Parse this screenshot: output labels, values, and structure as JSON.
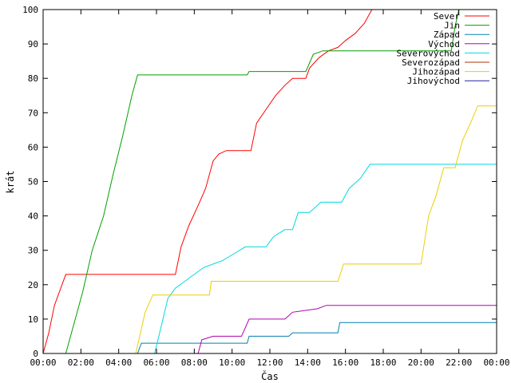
{
  "chart_data": {
    "type": "line",
    "xlabel": "Čas",
    "ylabel": "krát",
    "xlim": [
      0,
      24
    ],
    "ylim": [
      0,
      100
    ],
    "grid": false,
    "legend_position": "top-right",
    "x_tick_labels": [
      "00:00",
      "02:00",
      "04:00",
      "06:00",
      "08:00",
      "10:00",
      "12:00",
      "14:00",
      "16:00",
      "18:00",
      "20:00",
      "22:00",
      "00:00"
    ],
    "x_tick_values": [
      0,
      2,
      4,
      6,
      8,
      10,
      12,
      14,
      16,
      18,
      20,
      22,
      24
    ],
    "y_tick_values": [
      0,
      10,
      20,
      30,
      40,
      50,
      60,
      70,
      80,
      90,
      100
    ],
    "series": [
      {
        "name": "Sever",
        "color": "#ff0000",
        "points": [
          [
            0,
            0
          ],
          [
            0.3,
            6
          ],
          [
            0.6,
            14
          ],
          [
            1.0,
            20
          ],
          [
            1.2,
            23
          ],
          [
            7.0,
            23
          ],
          [
            7.3,
            31
          ],
          [
            7.7,
            37
          ],
          [
            8.2,
            43
          ],
          [
            8.6,
            48
          ],
          [
            9.0,
            56
          ],
          [
            9.3,
            58
          ],
          [
            9.7,
            59
          ],
          [
            11.0,
            59
          ],
          [
            11.3,
            67
          ],
          [
            11.8,
            71
          ],
          [
            12.3,
            75
          ],
          [
            12.8,
            78
          ],
          [
            13.2,
            80
          ],
          [
            13.9,
            80
          ],
          [
            14.1,
            83
          ],
          [
            14.6,
            86
          ],
          [
            15.1,
            88
          ],
          [
            15.6,
            89
          ],
          [
            16.0,
            91
          ],
          [
            16.5,
            93
          ],
          [
            17.0,
            96
          ],
          [
            17.4,
            100
          ]
        ]
      },
      {
        "name": "Jin",
        "color": "#00a000",
        "points": [
          [
            0,
            0
          ],
          [
            1.2,
            0
          ],
          [
            1.6,
            8
          ],
          [
            2.1,
            18
          ],
          [
            2.6,
            30
          ],
          [
            3.2,
            40
          ],
          [
            3.7,
            52
          ],
          [
            4.2,
            63
          ],
          [
            4.7,
            75
          ],
          [
            5.0,
            81
          ],
          [
            10.8,
            81
          ],
          [
            10.9,
            82
          ],
          [
            13.9,
            82
          ],
          [
            14.3,
            87
          ],
          [
            14.8,
            88
          ],
          [
            21.6,
            88
          ],
          [
            21.8,
            95
          ],
          [
            22.0,
            100
          ]
        ]
      },
      {
        "name": "Západ",
        "color": "#0080b0",
        "points": [
          [
            0,
            0
          ],
          [
            5.0,
            0
          ],
          [
            5.2,
            3
          ],
          [
            10.8,
            3
          ],
          [
            10.9,
            5
          ],
          [
            13.0,
            5
          ],
          [
            13.2,
            6
          ],
          [
            15.6,
            6
          ],
          [
            15.7,
            9
          ],
          [
            24,
            9
          ]
        ]
      },
      {
        "name": "Východ",
        "color": "#b000b0",
        "points": [
          [
            0,
            0
          ],
          [
            8.2,
            0
          ],
          [
            8.4,
            4
          ],
          [
            9.0,
            5
          ],
          [
            10.5,
            5
          ],
          [
            10.9,
            10
          ],
          [
            12.8,
            10
          ],
          [
            13.2,
            12
          ],
          [
            14.5,
            13
          ],
          [
            15.0,
            14
          ],
          [
            24,
            14
          ]
        ]
      },
      {
        "name": "Severovýchod",
        "color": "#00d8e0",
        "points": [
          [
            0,
            0
          ],
          [
            5.9,
            0
          ],
          [
            6.3,
            9
          ],
          [
            6.6,
            16
          ],
          [
            7.0,
            19
          ],
          [
            7.5,
            21
          ],
          [
            8.0,
            23
          ],
          [
            8.5,
            25
          ],
          [
            9.0,
            26
          ],
          [
            9.5,
            27
          ],
          [
            10.1,
            29
          ],
          [
            10.7,
            31
          ],
          [
            11.8,
            31
          ],
          [
            12.2,
            34
          ],
          [
            12.8,
            36
          ],
          [
            13.2,
            36
          ],
          [
            13.5,
            41
          ],
          [
            14.1,
            41
          ],
          [
            14.7,
            44
          ],
          [
            15.8,
            44
          ],
          [
            16.2,
            48
          ],
          [
            16.8,
            51
          ],
          [
            17.3,
            55
          ],
          [
            24,
            55
          ]
        ]
      },
      {
        "name": "Severozápad",
        "color": "#b03000",
        "points": []
      },
      {
        "name": "Jihozápad",
        "color": "#e8d000",
        "points": [
          [
            0,
            0
          ],
          [
            4.9,
            0
          ],
          [
            5.4,
            12
          ],
          [
            5.8,
            17
          ],
          [
            8.8,
            17
          ],
          [
            8.9,
            21
          ],
          [
            15.6,
            21
          ],
          [
            15.9,
            26
          ],
          [
            20.0,
            26
          ],
          [
            20.4,
            40
          ],
          [
            20.8,
            46
          ],
          [
            21.2,
            54
          ],
          [
            21.8,
            54
          ],
          [
            22.2,
            62
          ],
          [
            22.7,
            68
          ],
          [
            23.0,
            72
          ],
          [
            24,
            72
          ]
        ]
      },
      {
        "name": "Jihovýchod",
        "color": "#2020a0",
        "points": []
      }
    ]
  }
}
